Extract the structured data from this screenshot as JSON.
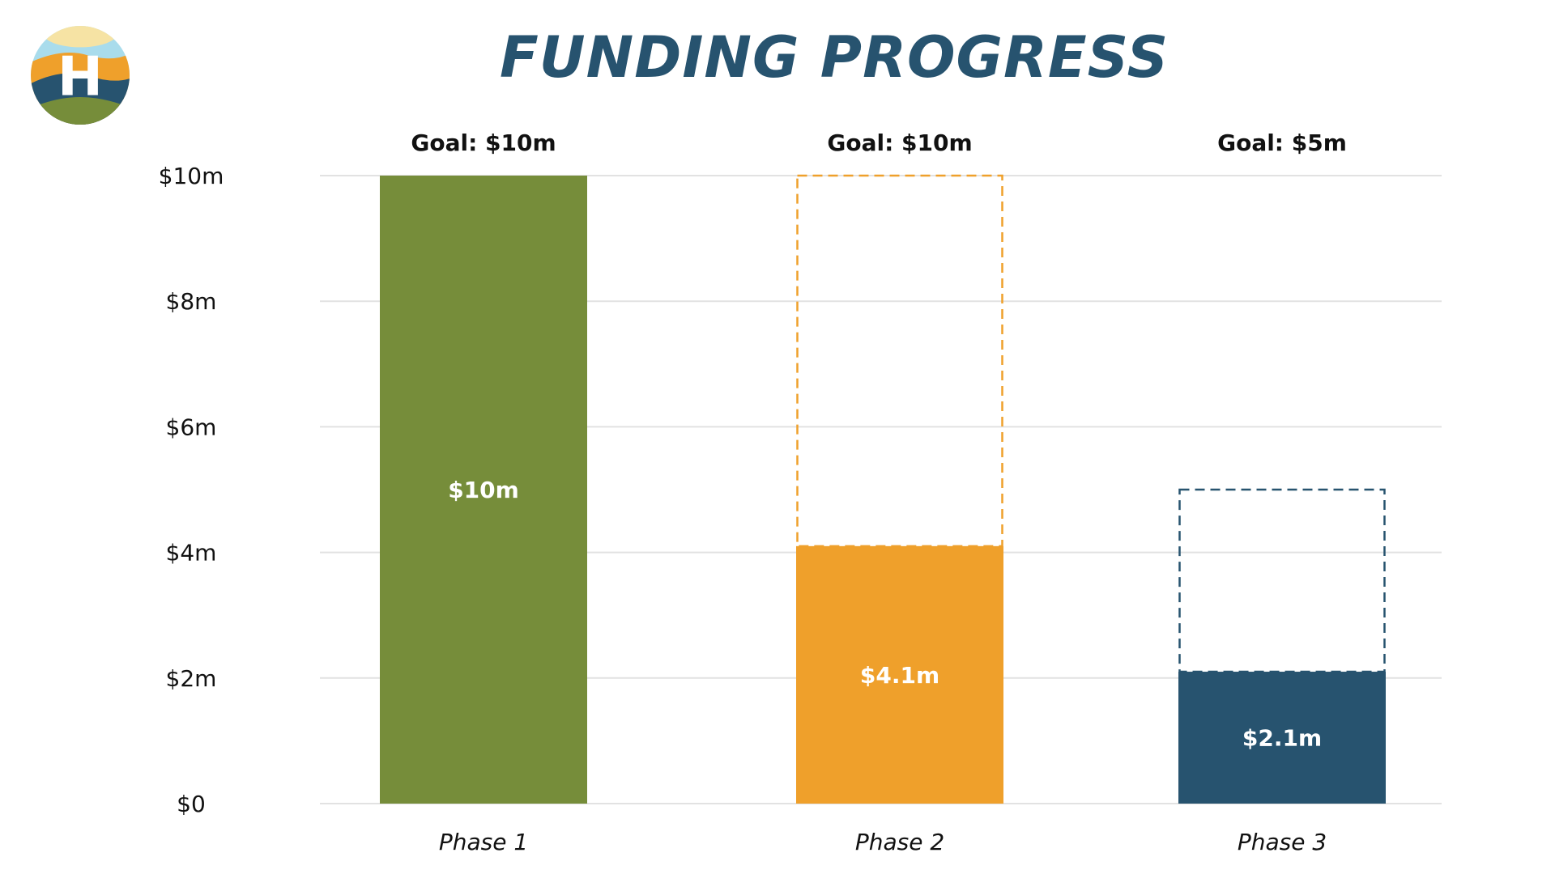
{
  "title": "FUNDING PROGRESS",
  "logo": {
    "icon": "h-landscape-logo-icon",
    "letter": "H",
    "colors": {
      "sky": "#a9dcec",
      "sun": "#f6e3a4",
      "orange": "#efa02b",
      "navy": "#27536f",
      "green": "#768d3a"
    }
  },
  "chart_data": {
    "type": "bar",
    "categories": [
      "Phase 1",
      "Phase 2",
      "Phase 3"
    ],
    "values": [
      10,
      4.1,
      2.1
    ],
    "goals": [
      10,
      10,
      5
    ],
    "value_labels": [
      "$10m",
      "$4.1m",
      "$2.1m"
    ],
    "goal_labels": [
      "Goal: $10m",
      "Goal: $10m",
      "Goal: $5m"
    ],
    "colors": [
      "#768d3a",
      "#efa02b",
      "#27536f"
    ],
    "yticks": [
      0,
      2,
      4,
      6,
      8,
      10
    ],
    "ytick_labels": [
      "$0",
      "$2m",
      "$4m",
      "$6m",
      "$8m",
      "$10m"
    ],
    "ylim": [
      0,
      10
    ],
    "grid": true,
    "gridline_color": "#e2e2e2",
    "title": "FUNDING PROGRESS",
    "xlabel": "",
    "ylabel": ""
  }
}
